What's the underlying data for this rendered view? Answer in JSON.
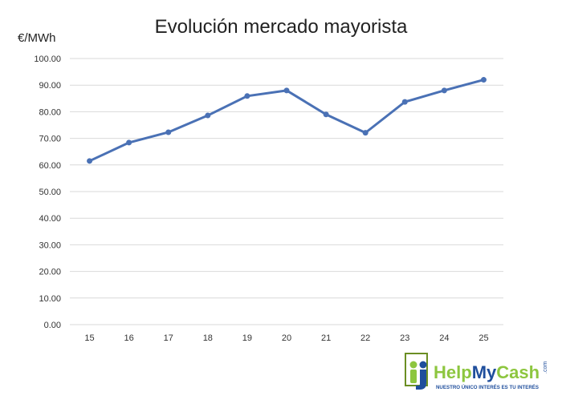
{
  "chart_data": {
    "type": "line",
    "title": "Evolución mercado mayorista",
    "ylabel": "€/MWh",
    "xlabel": "",
    "categories": [
      "15",
      "16",
      "17",
      "18",
      "19",
      "20",
      "21",
      "22",
      "23",
      "24",
      "25"
    ],
    "series": [
      {
        "values": [
          61.5,
          68.4,
          72.3,
          78.6,
          85.9,
          88.0,
          79.0,
          72.1,
          83.7,
          88.0,
          92.0
        ]
      }
    ],
    "ylim": [
      0,
      100
    ],
    "yticks": [
      "0.00",
      "10.00",
      "20.00",
      "30.00",
      "40.00",
      "50.00",
      "60.00",
      "70.00",
      "80.00",
      "90.00",
      "100.00"
    ],
    "grid": true,
    "legend": "none",
    "colors": {
      "series": "#4a71b5",
      "grid": "#d9d9d9"
    }
  },
  "logo": {
    "name": "HelpMyCash",
    "suffix": ".com",
    "tagline": "NUESTRO ÚNICO INTERÉS ES TU INTERÉS",
    "colors": {
      "green": "#8dc63f",
      "blue": "#1f4e9c",
      "frame": "#6b8e23"
    }
  }
}
